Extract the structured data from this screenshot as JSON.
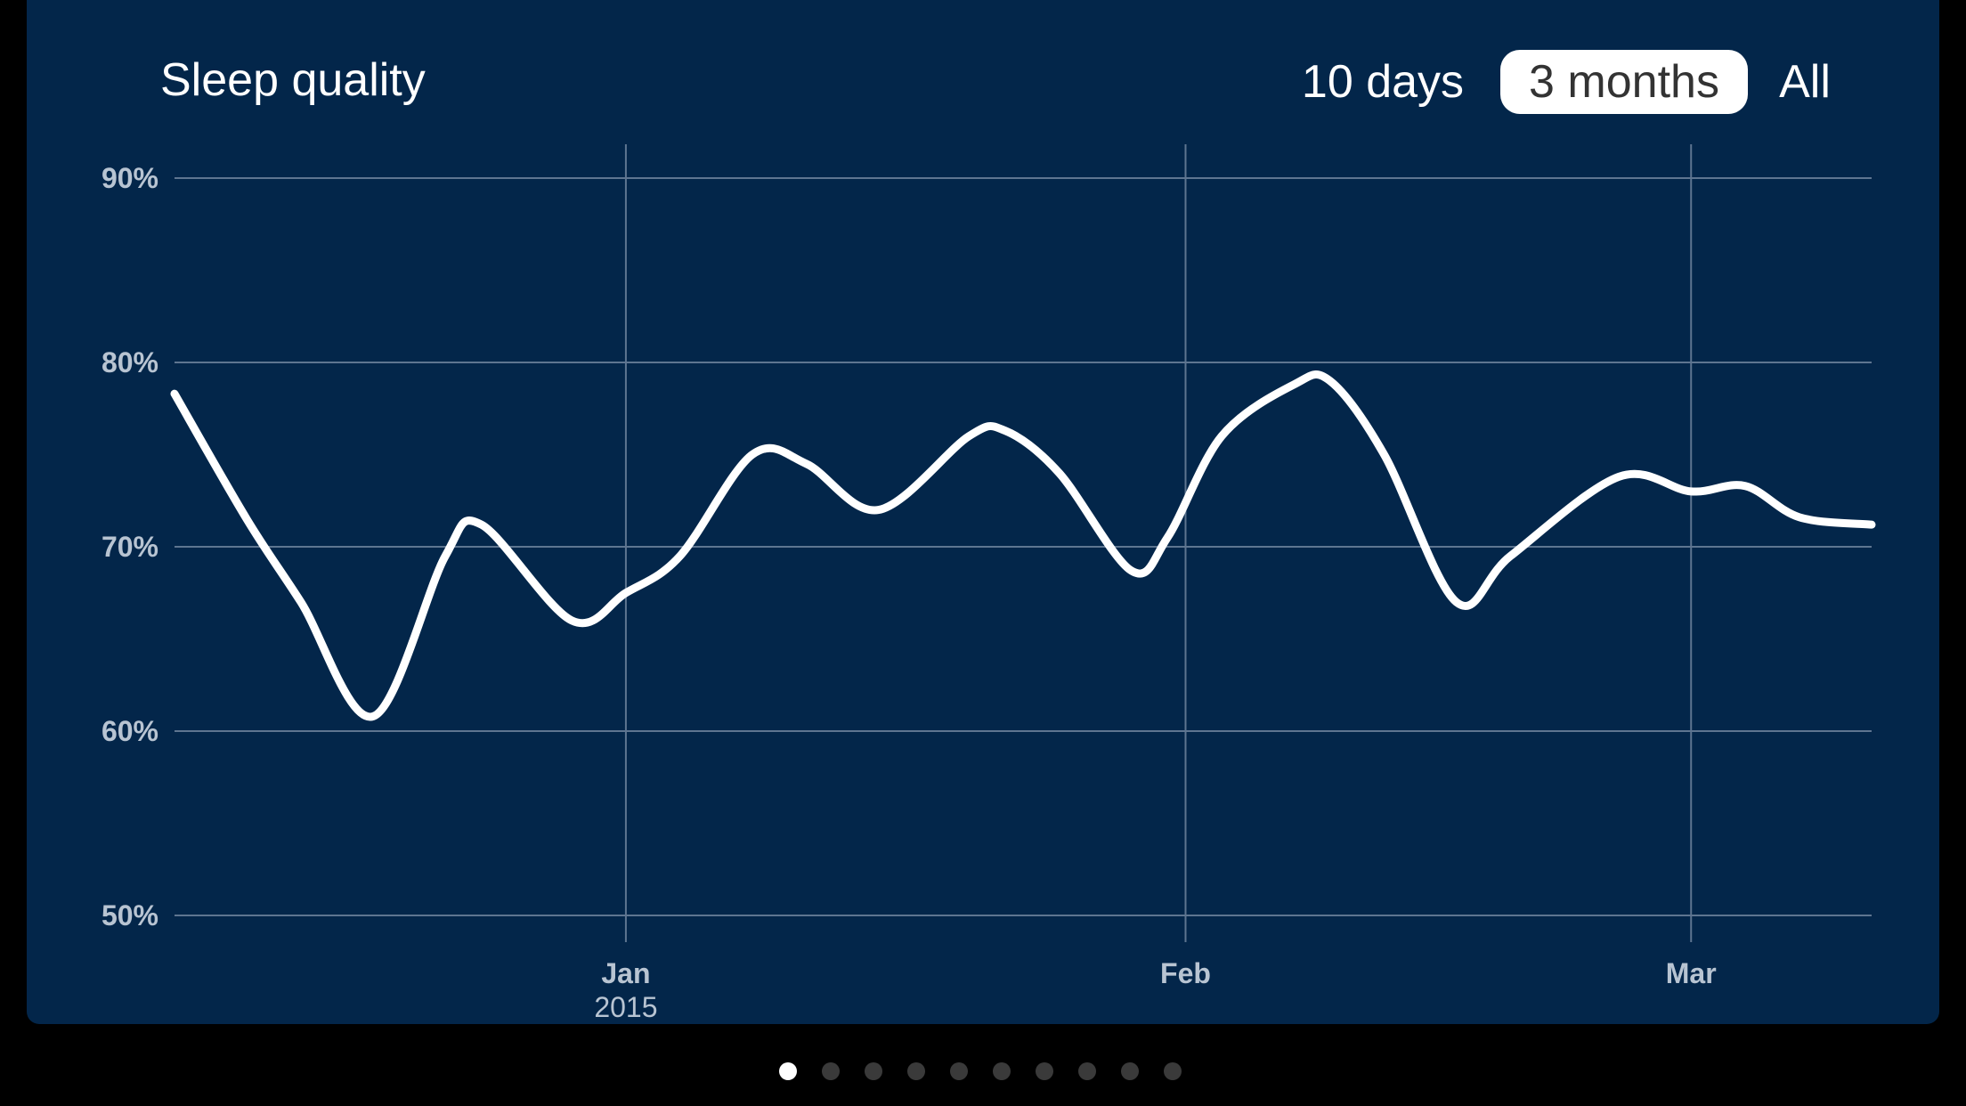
{
  "header": {
    "title": "Sleep quality",
    "ranges": [
      {
        "label": "10 days",
        "selected": false
      },
      {
        "label": "3 months",
        "selected": true
      },
      {
        "label": "All",
        "selected": false
      }
    ]
  },
  "chart_data": {
    "type": "line",
    "title": "Sleep quality",
    "xlabel": "",
    "ylabel": "",
    "ylim": [
      50,
      90
    ],
    "y_ticks": [
      "90%",
      "80%",
      "70%",
      "60%",
      "50%"
    ],
    "y_tick_values": [
      90,
      80,
      70,
      60,
      50
    ],
    "x_ticks": [
      {
        "label": "Jan",
        "sublabel": "2015",
        "date": "2015-01-01"
      },
      {
        "label": "Feb",
        "sublabel": "",
        "date": "2015-02-01"
      },
      {
        "label": "Mar",
        "sublabel": "",
        "date": "2015-03-01"
      }
    ],
    "xlim": [
      "2014-12-07",
      "2015-03-11"
    ],
    "grid": true,
    "series": [
      {
        "name": "",
        "color": "#ffffff",
        "points": [
          {
            "date": "2014-12-07",
            "value": 78.3
          },
          {
            "date": "2014-12-11",
            "value": 71.5
          },
          {
            "date": "2014-12-14",
            "value": 67.0
          },
          {
            "date": "2014-12-18",
            "value": 60.8
          },
          {
            "date": "2014-12-22",
            "value": 69.5
          },
          {
            "date": "2014-12-24",
            "value": 71.2
          },
          {
            "date": "2014-12-29",
            "value": 66.0
          },
          {
            "date": "2015-01-01",
            "value": 67.5
          },
          {
            "date": "2015-01-04",
            "value": 69.5
          },
          {
            "date": "2015-01-08",
            "value": 75.0
          },
          {
            "date": "2015-01-11",
            "value": 74.5
          },
          {
            "date": "2015-01-15",
            "value": 72.0
          },
          {
            "date": "2015-01-20",
            "value": 76.0
          },
          {
            "date": "2015-01-22",
            "value": 76.3
          },
          {
            "date": "2015-01-25",
            "value": 74.0
          },
          {
            "date": "2015-01-29",
            "value": 68.7
          },
          {
            "date": "2015-01-31",
            "value": 70.5
          },
          {
            "date": "2015-02-03",
            "value": 76.0
          },
          {
            "date": "2015-02-07",
            "value": 78.8
          },
          {
            "date": "2015-02-09",
            "value": 79.0
          },
          {
            "date": "2015-02-12",
            "value": 75.0
          },
          {
            "date": "2015-02-16",
            "value": 67.0
          },
          {
            "date": "2015-02-19",
            "value": 69.5
          },
          {
            "date": "2015-02-25",
            "value": 73.8
          },
          {
            "date": "2015-03-01",
            "value": 73.0
          },
          {
            "date": "2015-03-04",
            "value": 73.3
          },
          {
            "date": "2015-03-07",
            "value": 71.6
          },
          {
            "date": "2015-03-11",
            "value": 71.2
          }
        ]
      }
    ]
  },
  "pager": {
    "count": 10,
    "active_index": 0
  },
  "colors": {
    "background": "#000000",
    "card": "#03264a",
    "grid": "#5e7590",
    "axis_label": "#b8c4d2",
    "line": "#ffffff"
  }
}
